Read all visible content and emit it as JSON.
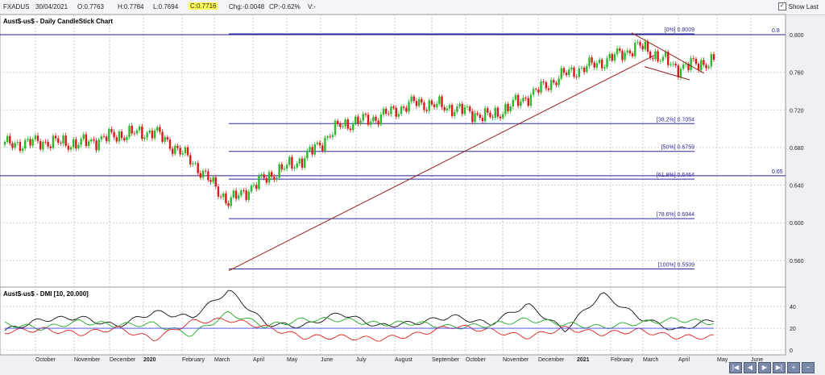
{
  "header": {
    "symbol": "FXADUS",
    "date": "30/04/2021",
    "open": "O:0.7763",
    "high": "H:0.7784",
    "low": "L:0.7694",
    "close": "C:0.7716",
    "change": "Chg:-0.0048",
    "change_pct": "CP:-0.62%",
    "volume": "V:-",
    "show_last_label": "Show Last",
    "show_last_checked": true
  },
  "price_panel": {
    "title": "Aust$-us$ - Daily CandleStick Chart"
  },
  "dmi_panel": {
    "title": "Aust$-us$ - DMI [10, 20.000]"
  },
  "chart_data": [
    {
      "type": "candlestick",
      "title": "Aust$-us$ - Daily CandleStick Chart",
      "y_ticks": [
        "0.800",
        "0.760",
        "0.720",
        "0.680",
        "0.640",
        "0.600",
        "0.560"
      ],
      "y_tick_values": [
        0.8,
        0.76,
        0.72,
        0.68,
        0.64,
        0.6,
        0.56
      ],
      "ylim": [
        0.535,
        0.818
      ],
      "x_ticks": [
        "October",
        "November",
        "December",
        "2020",
        "February",
        "March",
        "April",
        "May",
        "June",
        "July",
        "August",
        "September",
        "October",
        "November",
        "December",
        "2021",
        "February",
        "March",
        "April",
        "May",
        "June"
      ],
      "horizontal_lines": [
        {
          "label": "0.8",
          "value": 0.8
        },
        {
          "label": "0.65",
          "value": 0.65
        }
      ],
      "fib_levels": [
        {
          "label": "[0%] 0.8009",
          "value": 0.8009
        },
        {
          "label": "[38.2%] 0.7054",
          "value": 0.7054
        },
        {
          "label": "[50%] 0.6759",
          "value": 0.6759
        },
        {
          "label": "[61.8%] 0.6464",
          "value": 0.6464
        },
        {
          "label": "[78.6%] 0.6044",
          "value": 0.6044
        },
        {
          "label": "[100%] 0.5509",
          "value": 0.5509
        }
      ],
      "series": [
        {
          "x": [
            "Sep 2019",
            "Oct 2019",
            "Nov 2019",
            "Dec 2019",
            "Jan 2020",
            "Feb 2020",
            "Mar 2020",
            "Apr 2020",
            "May 2020",
            "Jun 2020",
            "Jul 2020",
            "Aug 2020",
            "Sep 2020",
            "Oct 2020",
            "Nov 2020",
            "Dec 2020",
            "Jan 2021",
            "Feb 2021",
            "Mar 2021",
            "Apr 2021"
          ],
          "values": [
            0.683,
            0.686,
            0.684,
            0.693,
            0.697,
            0.666,
            0.622,
            0.648,
            0.668,
            0.704,
            0.712,
            0.728,
            0.722,
            0.712,
            0.734,
            0.758,
            0.771,
            0.788,
            0.765,
            0.772
          ]
        }
      ],
      "colors": {
        "up": "#2db82d",
        "down": "#d81a1a"
      }
    },
    {
      "type": "line",
      "title": "Aust$-us$ - DMI [10, 20.000]",
      "y_ticks": [
        "40",
        "20",
        "0"
      ],
      "y_tick_values": [
        40,
        20,
        0
      ],
      "ylim": [
        -3,
        55
      ],
      "series": [
        {
          "values": [
            18,
            28,
            30,
            22,
            35,
            30,
            55,
            24,
            22,
            34,
            22,
            25,
            31,
            24,
            42,
            18,
            52,
            30,
            18,
            28
          ],
          "color": "#111111"
        },
        {
          "values": [
            24,
            20,
            26,
            23,
            24,
            14,
            34,
            22,
            28,
            28,
            24,
            25,
            21,
            23,
            28,
            24,
            21,
            25,
            28,
            25
          ],
          "color": "#22aa22"
        },
        {
          "values": [
            17,
            19,
            15,
            20,
            10,
            26,
            28,
            21,
            12,
            12,
            10,
            14,
            22,
            18,
            12,
            20,
            15,
            18,
            12,
            12
          ],
          "color": "#dd2222"
        },
        {
          "values": [
            20,
            20,
            20,
            20,
            20,
            20,
            20,
            20,
            20,
            20,
            20,
            20,
            20,
            20,
            20,
            20,
            20,
            20,
            20,
            20
          ],
          "color": "#4444dd"
        }
      ]
    }
  ]
}
